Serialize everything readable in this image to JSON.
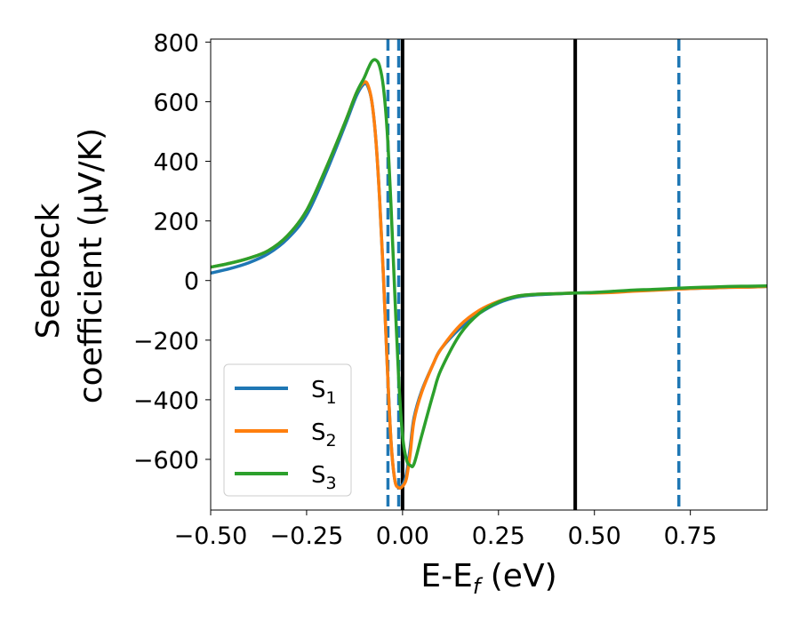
{
  "chart_data": {
    "type": "line",
    "xlabel": {
      "base": "E-E",
      "sub": "f",
      "suffix": " (eV)"
    },
    "ylabel": {
      "line1": "Seebeck",
      "line2": "coefficient  (μV/K)"
    },
    "xlim": [
      -0.5,
      0.95
    ],
    "ylim": [
      -770,
      810
    ],
    "xticks": [
      -0.5,
      -0.25,
      0.0,
      0.25,
      0.5,
      0.75
    ],
    "xtick_labels": [
      "−0.50",
      "−0.25",
      "0.00",
      "0.25",
      "0.50",
      "0.75"
    ],
    "yticks": [
      -600,
      -400,
      -200,
      0,
      200,
      400,
      600,
      800
    ],
    "ytick_labels": [
      "−600",
      "−400",
      "−200",
      "0",
      "200",
      "400",
      "600",
      "800"
    ],
    "legend_position": "lower-left",
    "series": [
      {
        "name": "S",
        "sub": "1",
        "color": "#1f77b4",
        "x": [
          -0.5,
          -0.45,
          -0.4,
          -0.35,
          -0.3,
          -0.25,
          -0.2,
          -0.15,
          -0.12,
          -0.1,
          -0.09,
          -0.08,
          -0.07,
          -0.06,
          -0.05,
          -0.04,
          -0.03,
          -0.02,
          -0.01,
          0.0,
          0.01,
          0.02,
          0.03,
          0.05,
          0.08,
          0.1,
          0.15,
          0.2,
          0.25,
          0.3,
          0.35,
          0.4,
          0.45,
          0.5,
          0.55,
          0.6,
          0.65,
          0.7,
          0.75,
          0.8,
          0.85,
          0.9,
          0.95
        ],
        "y": [
          25,
          40,
          60,
          90,
          140,
          220,
          360,
          520,
          620,
          660,
          650,
          600,
          480,
          280,
          20,
          -280,
          -540,
          -670,
          -690,
          -685,
          -650,
          -560,
          -460,
          -370,
          -280,
          -230,
          -160,
          -110,
          -75,
          -55,
          -48,
          -45,
          -42,
          -40,
          -38,
          -34,
          -32,
          -29,
          -27,
          -25,
          -23,
          -22,
          -20
        ]
      },
      {
        "name": "S",
        "sub": "2",
        "color": "#ff7f0e",
        "x": [
          -0.5,
          -0.45,
          -0.4,
          -0.35,
          -0.3,
          -0.25,
          -0.2,
          -0.15,
          -0.12,
          -0.1,
          -0.09,
          -0.08,
          -0.07,
          -0.06,
          -0.05,
          -0.04,
          -0.03,
          -0.02,
          -0.01,
          0.0,
          0.01,
          0.02,
          0.03,
          0.05,
          0.08,
          0.1,
          0.15,
          0.2,
          0.25,
          0.3,
          0.35,
          0.4,
          0.45,
          0.5,
          0.55,
          0.6,
          0.65,
          0.7,
          0.75,
          0.8,
          0.85,
          0.9,
          0.95
        ],
        "y": [
          45,
          58,
          75,
          100,
          150,
          235,
          375,
          530,
          630,
          665,
          655,
          600,
          480,
          280,
          20,
          -280,
          -540,
          -670,
          -695,
          -690,
          -665,
          -580,
          -470,
          -375,
          -280,
          -230,
          -150,
          -100,
          -70,
          -52,
          -46,
          -44,
          -42,
          -42,
          -40,
          -36,
          -33,
          -30,
          -27,
          -25,
          -23,
          -22,
          -20
        ]
      },
      {
        "name": "S",
        "sub": "3",
        "color": "#2ca02c",
        "x": [
          -0.5,
          -0.45,
          -0.4,
          -0.35,
          -0.3,
          -0.25,
          -0.2,
          -0.15,
          -0.12,
          -0.1,
          -0.09,
          -0.08,
          -0.07,
          -0.06,
          -0.05,
          -0.04,
          -0.03,
          -0.02,
          -0.01,
          0.0,
          0.01,
          0.02,
          0.03,
          0.05,
          0.08,
          0.1,
          0.15,
          0.2,
          0.25,
          0.3,
          0.35,
          0.4,
          0.45,
          0.5,
          0.55,
          0.6,
          0.65,
          0.7,
          0.75,
          0.8,
          0.85,
          0.9,
          0.95
        ],
        "y": [
          45,
          58,
          75,
          100,
          150,
          235,
          375,
          530,
          630,
          680,
          710,
          735,
          740,
          720,
          650,
          500,
          250,
          -50,
          -330,
          -520,
          -600,
          -620,
          -615,
          -520,
          -380,
          -300,
          -180,
          -110,
          -72,
          -52,
          -46,
          -44,
          -42,
          -40,
          -36,
          -32,
          -30,
          -27,
          -24,
          -22,
          -20,
          -19,
          -18
        ]
      }
    ],
    "vlines": [
      {
        "x": -0.038,
        "style": "dashed",
        "color": "#1f77b4"
      },
      {
        "x": -0.01,
        "style": "dashed",
        "color": "#1f77b4"
      },
      {
        "x": 0.72,
        "style": "dashed",
        "color": "#1f77b4"
      },
      {
        "x": 0.0,
        "style": "solid",
        "color": "#000000"
      },
      {
        "x": 0.45,
        "style": "solid",
        "color": "#000000"
      }
    ]
  }
}
